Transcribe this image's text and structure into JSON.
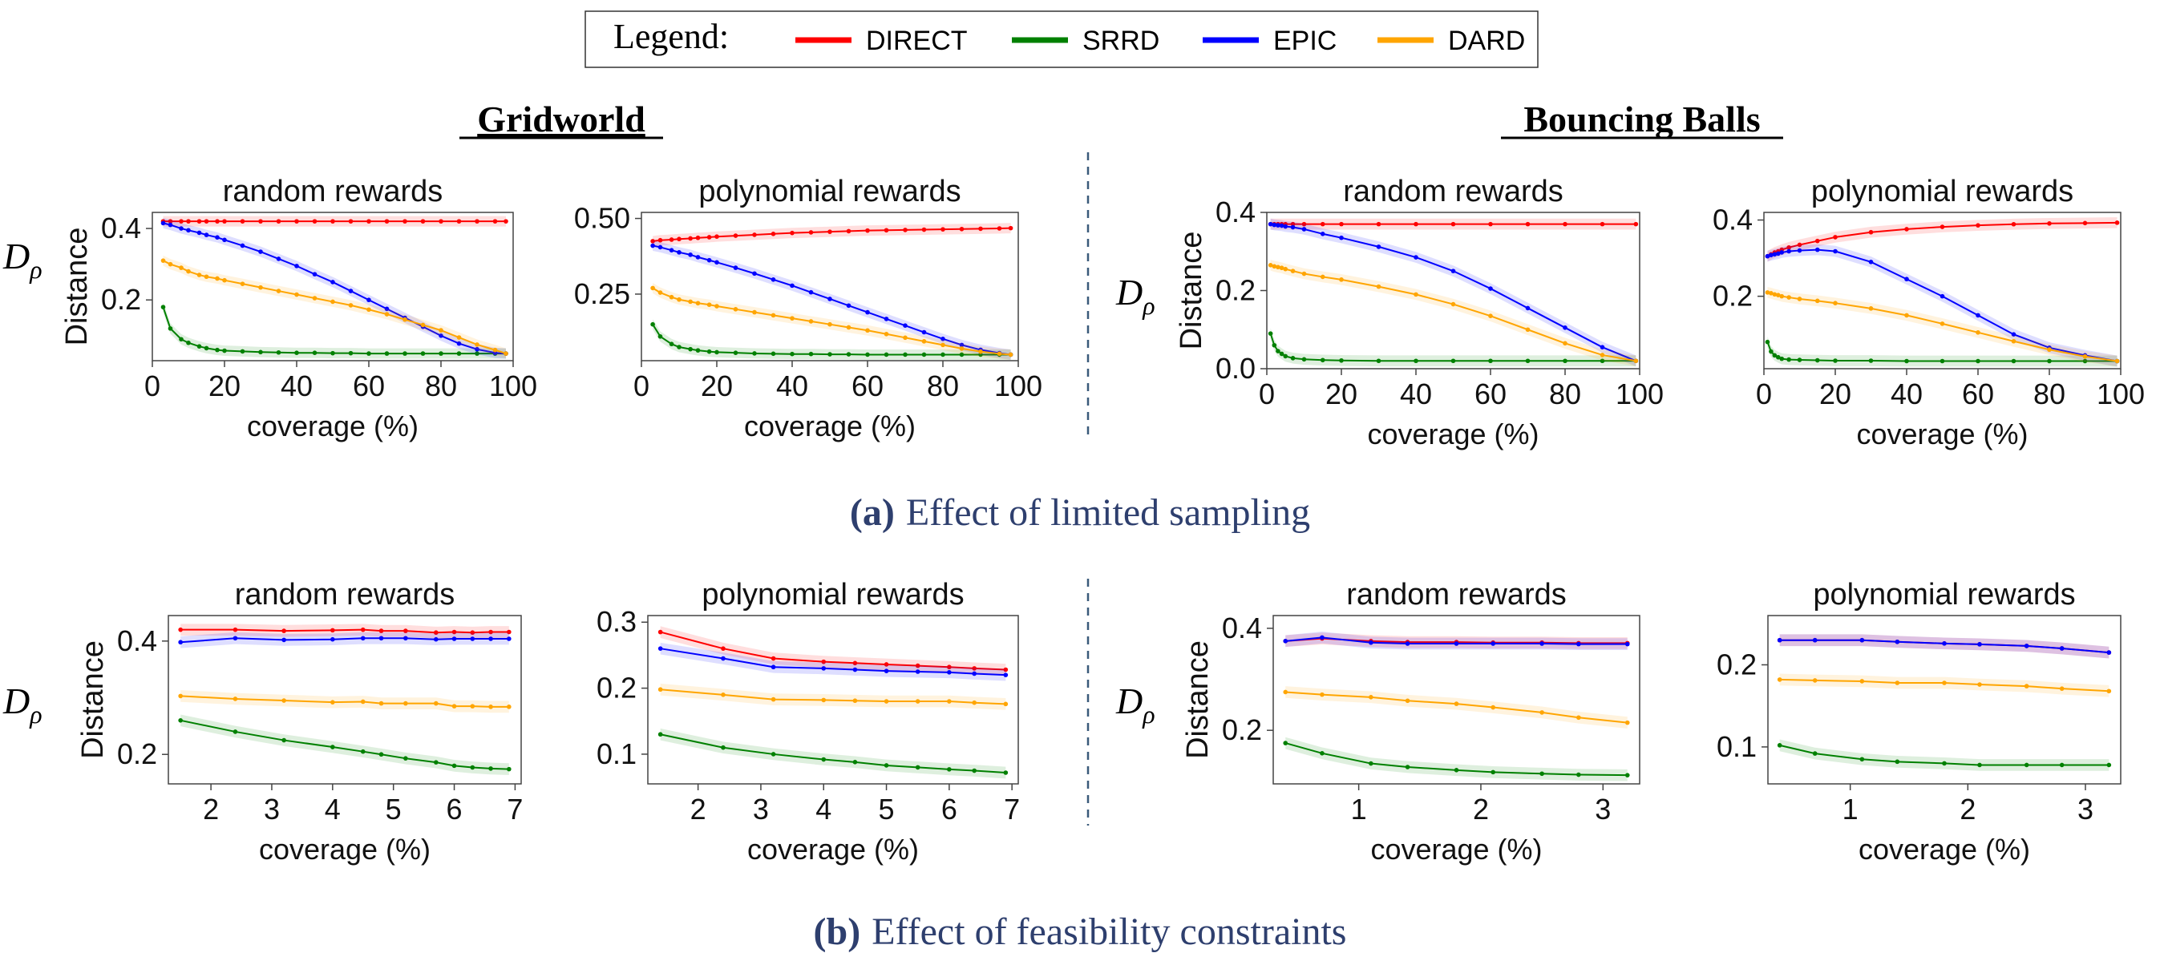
{
  "legend": {
    "title": "Legend:",
    "entries": [
      {
        "name": "DIRECT",
        "color": "#ff0000"
      },
      {
        "name": "SRRD",
        "color": "#008000"
      },
      {
        "name": "EPIC",
        "color": "#0000ff"
      },
      {
        "name": "DARD",
        "color": "#ffa500"
      }
    ]
  },
  "sections": {
    "gridworld": "Gridworld",
    "bouncing": "Bouncing Balls"
  },
  "captions": {
    "a_label": "(a)",
    "a_text": "Effect of limited sampling",
    "b_label": "(b)",
    "b_text": "Effect of feasibility constraints"
  },
  "dist_symbol": "D",
  "dist_sub": "ρ",
  "chart_data": [
    {
      "type": "line",
      "title": "random rewards",
      "xlabel": "coverage (%)",
      "ylabel": "Distance",
      "xlim": [
        0,
        100
      ],
      "ylim": [
        0.03,
        0.445
      ],
      "xticks": [
        0,
        20,
        40,
        60,
        80,
        100
      ],
      "xtick_labels": [
        "0",
        "20",
        "40",
        "60",
        "80",
        "100"
      ],
      "yticks": [
        0.2,
        0.4
      ],
      "ytick_labels": [
        "0.2",
        "0.4"
      ],
      "x": [
        3,
        5,
        8,
        10,
        13,
        15,
        18,
        20,
        25,
        30,
        35,
        40,
        45,
        50,
        55,
        60,
        65,
        70,
        75,
        80,
        85,
        90,
        95,
        98
      ],
      "series": [
        {
          "name": "DIRECT",
          "values": [
            0.42,
            0.42,
            0.42,
            0.42,
            0.42,
            0.42,
            0.42,
            0.42,
            0.42,
            0.42,
            0.42,
            0.42,
            0.42,
            0.42,
            0.42,
            0.42,
            0.42,
            0.42,
            0.42,
            0.42,
            0.42,
            0.42,
            0.42,
            0.42
          ]
        },
        {
          "name": "SRRD",
          "values": [
            0.18,
            0.12,
            0.09,
            0.08,
            0.07,
            0.065,
            0.06,
            0.058,
            0.056,
            0.054,
            0.053,
            0.052,
            0.052,
            0.051,
            0.051,
            0.05,
            0.05,
            0.05,
            0.05,
            0.05,
            0.05,
            0.05,
            0.05,
            0.05
          ]
        },
        {
          "name": "EPIC",
          "values": [
            0.415,
            0.41,
            0.4,
            0.395,
            0.388,
            0.382,
            0.375,
            0.368,
            0.352,
            0.335,
            0.315,
            0.295,
            0.272,
            0.25,
            0.225,
            0.2,
            0.175,
            0.15,
            0.125,
            0.1,
            0.078,
            0.062,
            0.052,
            0.05
          ]
        },
        {
          "name": "DARD",
          "values": [
            0.31,
            0.3,
            0.29,
            0.28,
            0.27,
            0.265,
            0.26,
            0.255,
            0.245,
            0.235,
            0.225,
            0.215,
            0.205,
            0.195,
            0.185,
            0.173,
            0.16,
            0.145,
            0.13,
            0.115,
            0.095,
            0.075,
            0.06,
            0.05
          ]
        }
      ]
    },
    {
      "type": "line",
      "title": "polynomial rewards",
      "xlabel": "coverage (%)",
      "ylabel": "",
      "xlim": [
        0,
        100
      ],
      "ylim": [
        0.03,
        0.52
      ],
      "xticks": [
        0,
        20,
        40,
        60,
        80,
        100
      ],
      "xtick_labels": [
        "0",
        "20",
        "40",
        "60",
        "80",
        "100"
      ],
      "yticks": [
        0.25,
        0.5
      ],
      "ytick_labels": [
        "0.25",
        "0.50"
      ],
      "x": [
        3,
        5,
        8,
        10,
        13,
        15,
        18,
        20,
        25,
        30,
        35,
        40,
        45,
        50,
        55,
        60,
        65,
        70,
        75,
        80,
        85,
        90,
        95,
        98
      ],
      "series": [
        {
          "name": "DIRECT",
          "values": [
            0.425,
            0.428,
            0.43,
            0.432,
            0.434,
            0.436,
            0.438,
            0.44,
            0.443,
            0.446,
            0.449,
            0.452,
            0.454,
            0.456,
            0.458,
            0.46,
            0.461,
            0.462,
            0.463,
            0.464,
            0.465,
            0.466,
            0.467,
            0.468
          ]
        },
        {
          "name": "SRRD",
          "values": [
            0.15,
            0.11,
            0.085,
            0.075,
            0.068,
            0.064,
            0.06,
            0.058,
            0.056,
            0.054,
            0.053,
            0.052,
            0.052,
            0.051,
            0.051,
            0.05,
            0.05,
            0.05,
            0.05,
            0.05,
            0.05,
            0.05,
            0.05,
            0.05
          ]
        },
        {
          "name": "EPIC",
          "values": [
            0.41,
            0.405,
            0.395,
            0.388,
            0.38,
            0.372,
            0.362,
            0.355,
            0.337,
            0.318,
            0.298,
            0.278,
            0.256,
            0.234,
            0.212,
            0.19,
            0.168,
            0.146,
            0.124,
            0.102,
            0.082,
            0.066,
            0.055,
            0.05
          ]
        },
        {
          "name": "DARD",
          "values": [
            0.27,
            0.255,
            0.24,
            0.232,
            0.225,
            0.22,
            0.215,
            0.21,
            0.2,
            0.19,
            0.18,
            0.17,
            0.16,
            0.15,
            0.14,
            0.13,
            0.118,
            0.106,
            0.094,
            0.082,
            0.07,
            0.06,
            0.053,
            0.05
          ]
        }
      ]
    },
    {
      "type": "line",
      "title": "random rewards",
      "xlabel": "coverage (%)",
      "ylabel": "Distance",
      "xlim": [
        0,
        100
      ],
      "ylim": [
        0,
        0.4
      ],
      "xticks": [
        0,
        20,
        40,
        60,
        80,
        100
      ],
      "xtick_labels": [
        "0",
        "20",
        "40",
        "60",
        "80",
        "100"
      ],
      "yticks": [
        0,
        0.2,
        0.4
      ],
      "ytick_labels": [
        "0.0",
        "0.2",
        "0.4"
      ],
      "x": [
        1,
        2,
        3,
        4,
        5,
        7,
        10,
        15,
        20,
        30,
        40,
        50,
        60,
        70,
        80,
        90,
        99
      ],
      "series": [
        {
          "name": "DIRECT",
          "values": [
            0.37,
            0.37,
            0.37,
            0.37,
            0.37,
            0.37,
            0.37,
            0.37,
            0.37,
            0.37,
            0.37,
            0.37,
            0.37,
            0.37,
            0.37,
            0.37,
            0.37
          ]
        },
        {
          "name": "SRRD",
          "values": [
            0.09,
            0.06,
            0.045,
            0.038,
            0.032,
            0.027,
            0.024,
            0.022,
            0.021,
            0.02,
            0.02,
            0.02,
            0.02,
            0.02,
            0.02,
            0.02,
            0.02
          ]
        },
        {
          "name": "EPIC",
          "values": [
            0.37,
            0.368,
            0.367,
            0.366,
            0.364,
            0.362,
            0.357,
            0.345,
            0.335,
            0.312,
            0.285,
            0.25,
            0.205,
            0.155,
            0.105,
            0.055,
            0.02
          ]
        },
        {
          "name": "DARD",
          "values": [
            0.265,
            0.262,
            0.26,
            0.258,
            0.255,
            0.25,
            0.243,
            0.235,
            0.228,
            0.21,
            0.19,
            0.165,
            0.135,
            0.1,
            0.065,
            0.035,
            0.02
          ]
        }
      ]
    },
    {
      "type": "line",
      "title": "polynomial rewards",
      "xlabel": "coverage (%)",
      "ylabel": "",
      "xlim": [
        0,
        100
      ],
      "ylim": [
        0.01,
        0.42
      ],
      "xticks": [
        0,
        20,
        40,
        60,
        80,
        100
      ],
      "xtick_labels": [
        "0",
        "20",
        "40",
        "60",
        "80",
        "100"
      ],
      "yticks": [
        0.2,
        0.4
      ],
      "ytick_labels": [
        "0.2",
        "0.4"
      ],
      "x": [
        1,
        2,
        3,
        4,
        5,
        7,
        10,
        15,
        20,
        30,
        40,
        50,
        60,
        70,
        80,
        90,
        99
      ],
      "series": [
        {
          "name": "DIRECT",
          "values": [
            0.305,
            0.31,
            0.315,
            0.318,
            0.322,
            0.328,
            0.335,
            0.345,
            0.355,
            0.368,
            0.376,
            0.382,
            0.386,
            0.389,
            0.391,
            0.392,
            0.393
          ]
        },
        {
          "name": "SRRD",
          "values": [
            0.08,
            0.055,
            0.045,
            0.04,
            0.036,
            0.034,
            0.033,
            0.032,
            0.031,
            0.031,
            0.03,
            0.03,
            0.03,
            0.03,
            0.03,
            0.03,
            0.03
          ]
        },
        {
          "name": "EPIC",
          "values": [
            0.305,
            0.308,
            0.31,
            0.312,
            0.315,
            0.318,
            0.32,
            0.322,
            0.318,
            0.29,
            0.245,
            0.2,
            0.15,
            0.1,
            0.065,
            0.045,
            0.03
          ]
        },
        {
          "name": "DARD",
          "values": [
            0.21,
            0.208,
            0.205,
            0.203,
            0.2,
            0.197,
            0.193,
            0.188,
            0.182,
            0.168,
            0.15,
            0.128,
            0.105,
            0.082,
            0.06,
            0.042,
            0.03
          ]
        }
      ]
    },
    {
      "type": "line",
      "title": "random rewards",
      "xlabel": "coverage (%)",
      "ylabel": "Distance",
      "xlim": [
        1.3,
        7.1
      ],
      "ylim": [
        0.148,
        0.445
      ],
      "xticks": [
        2,
        3,
        4,
        5,
        6,
        7
      ],
      "xtick_labels": [
        "2",
        "3",
        "4",
        "5",
        "6",
        "7"
      ],
      "yticks": [
        0.2,
        0.4
      ],
      "ytick_labels": [
        "0.2",
        "0.4"
      ],
      "x": [
        1.5,
        2.4,
        3.2,
        4.0,
        4.5,
        4.8,
        5.2,
        5.7,
        6.0,
        6.3,
        6.6,
        6.9
      ],
      "series": [
        {
          "name": "DIRECT",
          "values": [
            0.42,
            0.42,
            0.418,
            0.419,
            0.42,
            0.418,
            0.418,
            0.415,
            0.416,
            0.415,
            0.416,
            0.416
          ]
        },
        {
          "name": "SRRD",
          "values": [
            0.26,
            0.24,
            0.225,
            0.213,
            0.205,
            0.2,
            0.193,
            0.186,
            0.18,
            0.177,
            0.175,
            0.174
          ]
        },
        {
          "name": "EPIC",
          "values": [
            0.398,
            0.405,
            0.402,
            0.403,
            0.405,
            0.405,
            0.405,
            0.403,
            0.404,
            0.404,
            0.404,
            0.404
          ]
        },
        {
          "name": "DARD",
          "values": [
            0.303,
            0.298,
            0.295,
            0.292,
            0.293,
            0.29,
            0.29,
            0.29,
            0.285,
            0.285,
            0.284,
            0.284
          ]
        }
      ]
    },
    {
      "type": "line",
      "title": "polynomial rewards",
      "xlabel": "coverage (%)",
      "ylabel": "",
      "xlim": [
        1.2,
        7.1
      ],
      "ylim": [
        0.055,
        0.31
      ],
      "xticks": [
        2,
        3,
        4,
        5,
        6,
        7
      ],
      "xtick_labels": [
        "2",
        "3",
        "4",
        "5",
        "6",
        "7"
      ],
      "yticks": [
        0.1,
        0.2,
        0.3
      ],
      "ytick_labels": [
        "0.1",
        "0.2",
        "0.3"
      ],
      "x": [
        1.4,
        2.4,
        3.2,
        4.0,
        4.5,
        5.0,
        5.5,
        6.0,
        6.4,
        6.9
      ],
      "series": [
        {
          "name": "DIRECT",
          "values": [
            0.285,
            0.26,
            0.245,
            0.24,
            0.238,
            0.236,
            0.234,
            0.232,
            0.23,
            0.228
          ]
        },
        {
          "name": "SRRD",
          "values": [
            0.13,
            0.11,
            0.1,
            0.092,
            0.088,
            0.083,
            0.08,
            0.077,
            0.075,
            0.072
          ]
        },
        {
          "name": "EPIC",
          "values": [
            0.26,
            0.245,
            0.232,
            0.23,
            0.228,
            0.226,
            0.225,
            0.224,
            0.222,
            0.22
          ]
        },
        {
          "name": "DARD",
          "values": [
            0.198,
            0.19,
            0.183,
            0.182,
            0.181,
            0.18,
            0.18,
            0.18,
            0.178,
            0.176
          ]
        }
      ]
    },
    {
      "type": "line",
      "title": "random rewards",
      "xlabel": "coverage (%)",
      "ylabel": "Distance",
      "xlim": [
        0.3,
        3.3
      ],
      "ylim": [
        0.095,
        0.425
      ],
      "xticks": [
        1,
        2,
        3
      ],
      "xtick_labels": [
        "1",
        "2",
        "3"
      ],
      "yticks": [
        0.2,
        0.4
      ],
      "ytick_labels": [
        "0.2",
        "0.4"
      ],
      "x": [
        0.4,
        0.7,
        1.1,
        1.4,
        1.8,
        2.1,
        2.5,
        2.8,
        3.2
      ],
      "series": [
        {
          "name": "DIRECT",
          "values": [
            0.375,
            0.38,
            0.375,
            0.373,
            0.373,
            0.372,
            0.372,
            0.371,
            0.371
          ]
        },
        {
          "name": "SRRD",
          "values": [
            0.175,
            0.155,
            0.135,
            0.128,
            0.122,
            0.118,
            0.115,
            0.113,
            0.112
          ]
        },
        {
          "name": "EPIC",
          "values": [
            0.375,
            0.382,
            0.372,
            0.37,
            0.37,
            0.37,
            0.37,
            0.369,
            0.369
          ]
        },
        {
          "name": "DARD",
          "values": [
            0.275,
            0.27,
            0.265,
            0.258,
            0.252,
            0.245,
            0.235,
            0.225,
            0.215
          ]
        }
      ]
    },
    {
      "type": "line",
      "title": "polynomial rewards",
      "xlabel": "coverage (%)",
      "ylabel": "",
      "xlim": [
        0.3,
        3.3
      ],
      "ylim": [
        0.055,
        0.26
      ],
      "xticks": [
        1,
        2,
        3
      ],
      "xtick_labels": [
        "1",
        "2",
        "3"
      ],
      "yticks": [
        0.1,
        0.2
      ],
      "ytick_labels": [
        "0.1",
        "0.2"
      ],
      "x": [
        0.4,
        0.7,
        1.1,
        1.4,
        1.8,
        2.1,
        2.5,
        2.8,
        3.2
      ],
      "series": [
        {
          "name": "DIRECT",
          "values": [
            0.23,
            0.23,
            0.23,
            0.228,
            0.226,
            0.225,
            0.223,
            0.22,
            0.215
          ]
        },
        {
          "name": "SRRD",
          "values": [
            0.102,
            0.092,
            0.085,
            0.082,
            0.08,
            0.078,
            0.078,
            0.078,
            0.078
          ]
        },
        {
          "name": "EPIC",
          "values": [
            0.23,
            0.23,
            0.23,
            0.228,
            0.226,
            0.225,
            0.223,
            0.22,
            0.215
          ]
        },
        {
          "name": "DARD",
          "values": [
            0.182,
            0.181,
            0.18,
            0.178,
            0.178,
            0.176,
            0.174,
            0.171,
            0.168
          ]
        }
      ]
    }
  ]
}
